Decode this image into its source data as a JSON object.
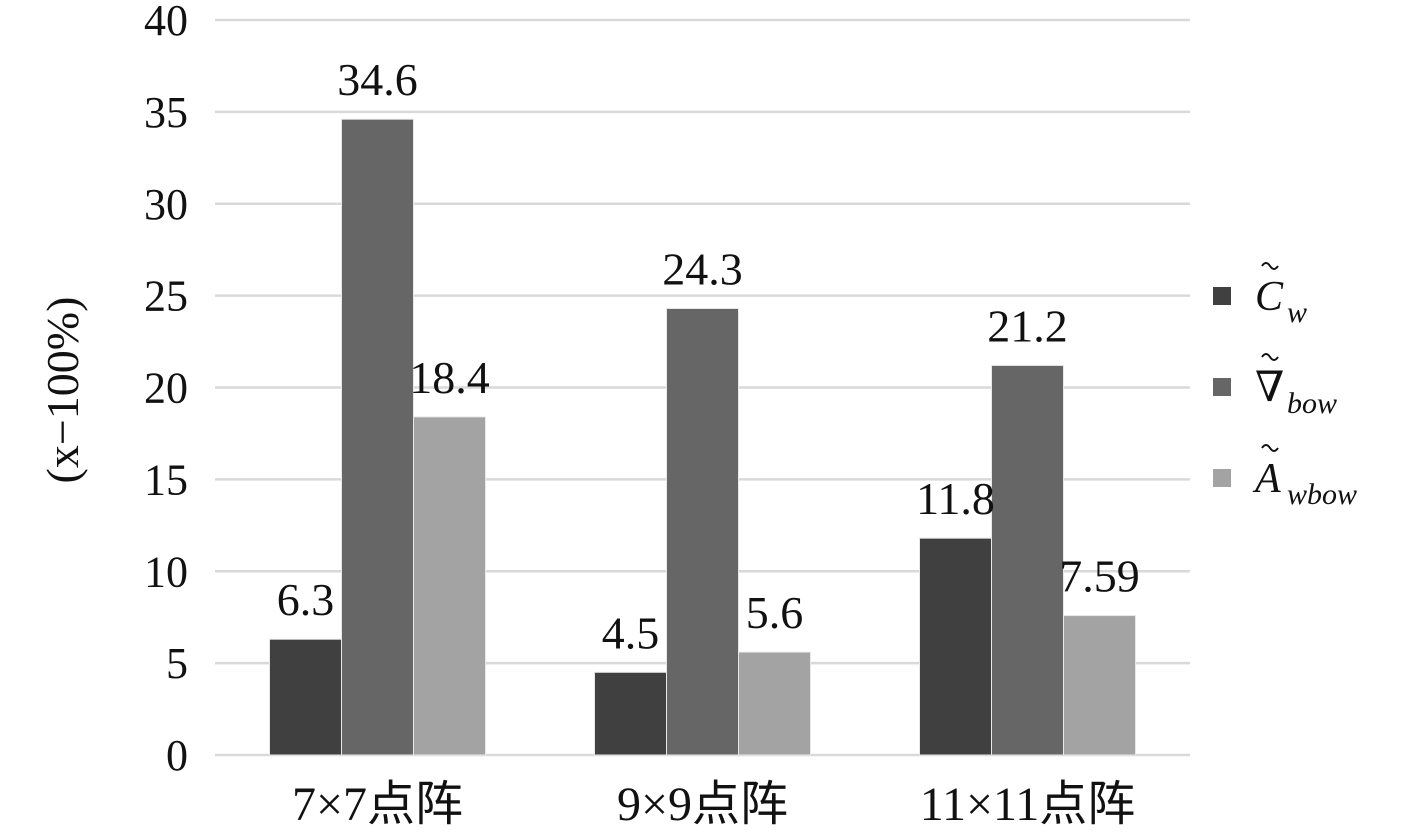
{
  "chart_data": {
    "type": "bar",
    "title": "",
    "xlabel": "",
    "ylabel": "(x−100%)",
    "ylim": [
      0,
      40
    ],
    "yticks": [
      0,
      5,
      10,
      15,
      20,
      25,
      30,
      35,
      40
    ],
    "grid": true,
    "legend_position": "right",
    "categories": [
      "7×7点阵",
      "9×9点阵",
      "11×11点阵"
    ],
    "series": [
      {
        "name": "C̃w",
        "legend_main": "C",
        "legend_sub": "w",
        "color": "#404040",
        "values": [
          6.3,
          4.5,
          11.8
        ],
        "labels": [
          "6.3",
          "4.5",
          "11.8"
        ]
      },
      {
        "name": "∇̃bow",
        "legend_main": "∇",
        "legend_sub": "bow",
        "color": "#666666",
        "values": [
          34.6,
          24.3,
          21.2
        ],
        "labels": [
          "34.6",
          "24.3",
          "21.2"
        ]
      },
      {
        "name": "Ãwbow",
        "legend_main": "A",
        "legend_sub": "wbow",
        "color": "#a3a3a3",
        "values": [
          18.4,
          5.6,
          7.59
        ],
        "labels": [
          "18.4",
          "5.6",
          "7.59"
        ]
      }
    ]
  }
}
